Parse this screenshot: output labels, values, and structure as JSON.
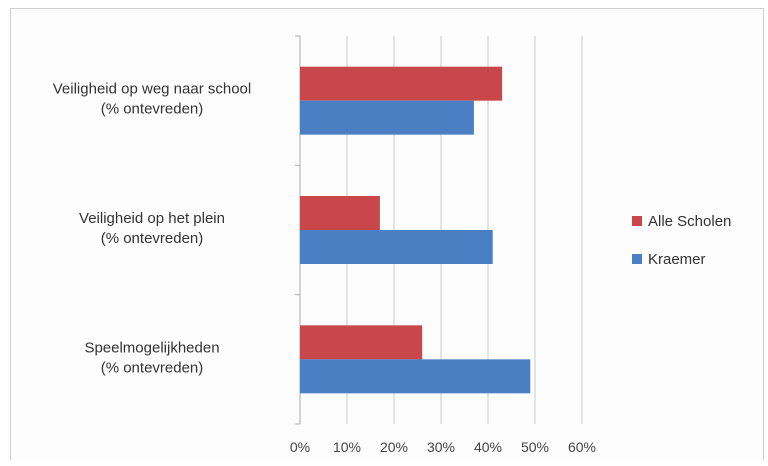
{
  "colors": {
    "alle_scholen": "#c9464b",
    "kraemer": "#4a7fc4",
    "grid": "#cccccc"
  },
  "chart_data": {
    "type": "bar",
    "orientation": "horizontal",
    "categories": [
      [
        "Veiligheid op weg naar school",
        "(% ontevreden)"
      ],
      [
        "Veiligheid op het plein",
        "(% ontevreden)"
      ],
      [
        "Speelmogelijkheden",
        "(% ontevreden)"
      ]
    ],
    "series": [
      {
        "name": "Alle Scholen",
        "values": [
          0.43,
          0.17,
          0.26
        ]
      },
      {
        "name": "Kraemer",
        "values": [
          0.37,
          0.41,
          0.49
        ]
      }
    ],
    "xlim": [
      0,
      0.6
    ],
    "xticks": [
      "0%",
      "10%",
      "20%",
      "30%",
      "40%",
      "50%",
      "60%"
    ],
    "grid": true,
    "legend": "right"
  }
}
